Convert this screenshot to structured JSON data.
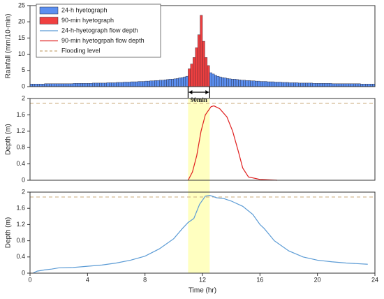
{
  "chart_data": [
    {
      "type": "bar",
      "ylabel": "Rainfall (mm/10-min)",
      "xlim": [
        0,
        24
      ],
      "ylim": [
        0,
        25
      ],
      "yticks": [
        0,
        5,
        10,
        15,
        20,
        25
      ],
      "annotation": {
        "text": "90min",
        "x": [
          11,
          12.5
        ]
      },
      "series": [
        {
          "name": "24-h hyetograph",
          "color": "#5b8ff0",
          "bins": [
            0,
            0.167,
            0.333,
            0.5,
            0.667,
            0.833,
            1,
            1.167,
            1.333,
            1.5,
            1.667,
            1.833,
            2,
            2.167,
            2.333,
            2.5,
            2.667,
            2.833,
            3,
            3.167,
            3.333,
            3.5,
            3.667,
            3.833,
            4,
            4.167,
            4.333,
            4.5,
            4.667,
            4.833,
            5,
            5.167,
            5.333,
            5.5,
            5.667,
            5.833,
            6,
            6.167,
            6.333,
            6.5,
            6.667,
            6.833,
            7,
            7.167,
            7.333,
            7.5,
            7.667,
            7.833,
            8,
            8.167,
            8.333,
            8.5,
            8.667,
            8.833,
            9,
            9.167,
            9.333,
            9.5,
            9.667,
            9.833,
            10,
            10.167,
            10.333,
            10.5,
            10.667,
            10.833,
            11,
            11.167,
            11.333,
            11.5,
            11.667,
            11.833,
            12,
            12.167,
            12.333,
            12.5,
            12.667,
            12.833,
            13,
            13.167,
            13.333,
            13.5,
            13.667,
            13.833,
            14,
            14.167,
            14.333,
            14.5,
            14.667,
            14.833,
            15,
            15.167,
            15.333,
            15.5,
            15.667,
            15.833,
            16,
            16.167,
            16.333,
            16.5,
            16.667,
            16.833,
            17,
            17.167,
            17.333,
            17.5,
            17.667,
            17.833,
            18,
            18.167,
            18.333,
            18.5,
            18.667,
            18.833,
            19,
            19.167,
            19.333,
            19.5,
            19.667,
            19.833,
            20,
            20.167,
            20.333,
            20.5,
            20.667,
            20.833,
            21,
            21.167,
            21.333,
            21.5,
            21.667,
            21.833,
            22,
            22.167,
            22.333,
            22.5,
            22.667,
            22.833,
            23,
            23.167,
            23.333,
            23.5,
            23.667,
            23.833,
            24
          ],
          "values": [
            0.8,
            0.8,
            0.8,
            0.8,
            0.8,
            0.8,
            0.9,
            0.9,
            0.9,
            0.9,
            0.9,
            0.9,
            0.9,
            0.9,
            0.9,
            0.9,
            0.9,
            0.9,
            1,
            1,
            1,
            1,
            1,
            1,
            1,
            1,
            1.1,
            1.1,
            1.1,
            1.1,
            1.1,
            1.1,
            1.2,
            1.2,
            1.2,
            1.2,
            1.3,
            1.3,
            1.3,
            1.4,
            1.4,
            1.4,
            1.5,
            1.5,
            1.5,
            1.6,
            1.6,
            1.6,
            1.7,
            1.7,
            1.8,
            1.8,
            1.9,
            1.9,
            2,
            2,
            2.1,
            2.2,
            2.3,
            2.3,
            2.4,
            2.5,
            2.7,
            2.8,
            3,
            3.2,
            3.5,
            3.9,
            4.3,
            4.9,
            5.8,
            7.5,
            7.5,
            5.8,
            4.9,
            4.3,
            3.9,
            3.5,
            3.2,
            3,
            2.8,
            2.7,
            2.5,
            2.4,
            2.3,
            2.3,
            2.2,
            2.1,
            2,
            2,
            1.9,
            1.9,
            1.8,
            1.8,
            1.7,
            1.7,
            1.6,
            1.6,
            1.6,
            1.5,
            1.5,
            1.5,
            1.4,
            1.4,
            1.4,
            1.3,
            1.3,
            1.3,
            1.2,
            1.2,
            1.2,
            1.2,
            1.1,
            1.1,
            1.1,
            1.1,
            1.1,
            1.1,
            1,
            1,
            1,
            1,
            1,
            1,
            1,
            1,
            0.9,
            0.9,
            0.9,
            0.9,
            0.9,
            0.9,
            0.9,
            0.9,
            0.9,
            0.9,
            0.9,
            0.9,
            0.8,
            0.8,
            0.8,
            0.8,
            0.8,
            0.8
          ]
        },
        {
          "name": "90-min hyetograph",
          "color": "#f04040",
          "bins": [
            11,
            11.167,
            11.333,
            11.5,
            11.667,
            11.833,
            12,
            12.167,
            12.333,
            12.5
          ],
          "values": [
            5.5,
            7,
            9,
            12,
            16,
            22,
            14,
            9,
            6.5
          ]
        }
      ]
    },
    {
      "type": "line",
      "ylabel": "Depth (m)",
      "xlim": [
        0,
        24
      ],
      "ylim": [
        0,
        2
      ],
      "yticks": [
        0,
        0.4,
        0.8,
        1.2,
        1.6,
        2
      ],
      "shade": [
        11,
        12.5
      ],
      "shade_color": "#ffffc0",
      "reference_line": {
        "name": "Flooding level",
        "value": 1.88,
        "color": "#c8a878"
      },
      "series": [
        {
          "name": "90-min hyetogrpah flow depth",
          "color": "#e02020",
          "x": [
            11,
            11.3,
            11.6,
            11.9,
            12.2,
            12.6,
            12.8,
            13.2,
            13.7,
            14.1,
            14.5,
            14.8,
            15.2,
            16,
            17.2
          ],
          "values": [
            0,
            0.2,
            0.6,
            1.2,
            1.6,
            1.8,
            1.82,
            1.75,
            1.55,
            1.2,
            0.7,
            0.3,
            0.08,
            0.02,
            0
          ]
        }
      ]
    },
    {
      "type": "line",
      "ylabel": "Depth (m)",
      "xlabel": "Time (hr)",
      "xlim": [
        0,
        24
      ],
      "xticks": [
        0,
        4,
        8,
        12,
        16,
        20,
        24
      ],
      "ylim": [
        0,
        2
      ],
      "yticks": [
        0,
        0.4,
        0.8,
        1.2,
        1.6,
        2
      ],
      "shade": [
        11,
        12.5
      ],
      "shade_color": "#ffffc0",
      "reference_line": {
        "value": 1.88,
        "color": "#c8a878"
      },
      "series": [
        {
          "name": "24-h-hyetograph flow depth",
          "color": "#5b9bd5",
          "x": [
            0.2,
            0.5,
            1,
            1.5,
            2,
            3,
            4,
            5,
            6,
            7,
            8,
            9,
            10,
            10.6,
            11,
            11.4,
            11.8,
            12.2,
            12.5,
            13,
            13.5,
            14,
            14.8,
            15.5,
            16,
            16.3,
            17,
            18,
            19,
            20,
            21,
            22,
            23.5
          ],
          "values": [
            0,
            0.05,
            0.08,
            0.1,
            0.13,
            0.14,
            0.17,
            0.2,
            0.25,
            0.32,
            0.42,
            0.6,
            0.85,
            1.1,
            1.25,
            1.35,
            1.7,
            1.9,
            1.92,
            1.86,
            1.84,
            1.78,
            1.65,
            1.45,
            1.2,
            1.1,
            0.8,
            0.55,
            0.4,
            0.32,
            0.28,
            0.25,
            0.22
          ]
        }
      ]
    }
  ]
}
